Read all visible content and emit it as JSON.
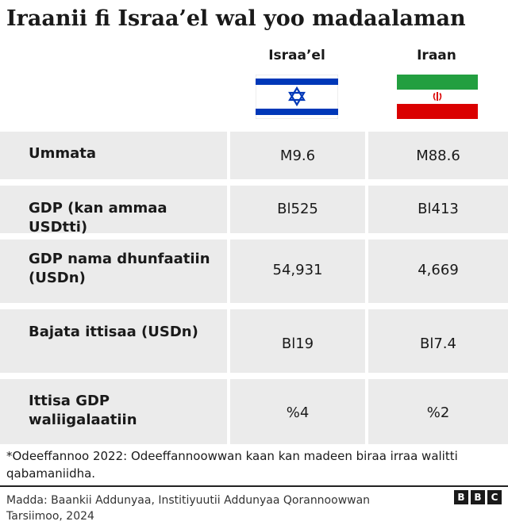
{
  "title": "Iraanii fi Israa’el wal yoo madaalaman",
  "columns": {
    "israel": "Israa’el",
    "iran": "Iraan"
  },
  "chart_data": {
    "type": "table",
    "columns": [
      "Israa’el",
      "Iraan"
    ],
    "rows": [
      {
        "label": "Ummata",
        "israel": "M9.6",
        "iran": "M88.6"
      },
      {
        "label": "GDP (kan ammaa USDtti)",
        "israel": "Bl525",
        "iran": "Bl413"
      },
      {
        "label": "GDP nama dhunfaatiin (USDn)",
        "israel": "54,931",
        "iran": "4,669"
      },
      {
        "label": "Bajata ittisaa (USDn)",
        "israel": "Bl19",
        "iran": "Bl7.4"
      },
      {
        "label": "Ittisa GDP waliigalaatiin",
        "israel": "%4",
        "iran": "%2"
      }
    ]
  },
  "footnote": "*Odeeffannoo 2022: Odeeffannoowwan kaan kan madeen biraa irraa walitti qabamaniidha.",
  "source": "Madda: Baankii Addunyaa, Institiyuutii Addunyaa Qorannoowwan Tarsiimoo, 2024",
  "logo": {
    "letters": [
      "B",
      "B",
      "C"
    ]
  },
  "colors": {
    "cell_bg": "#ebebeb",
    "israel_blue": "#0038b8",
    "iran_green": "#239f40",
    "iran_red": "#da0000"
  }
}
